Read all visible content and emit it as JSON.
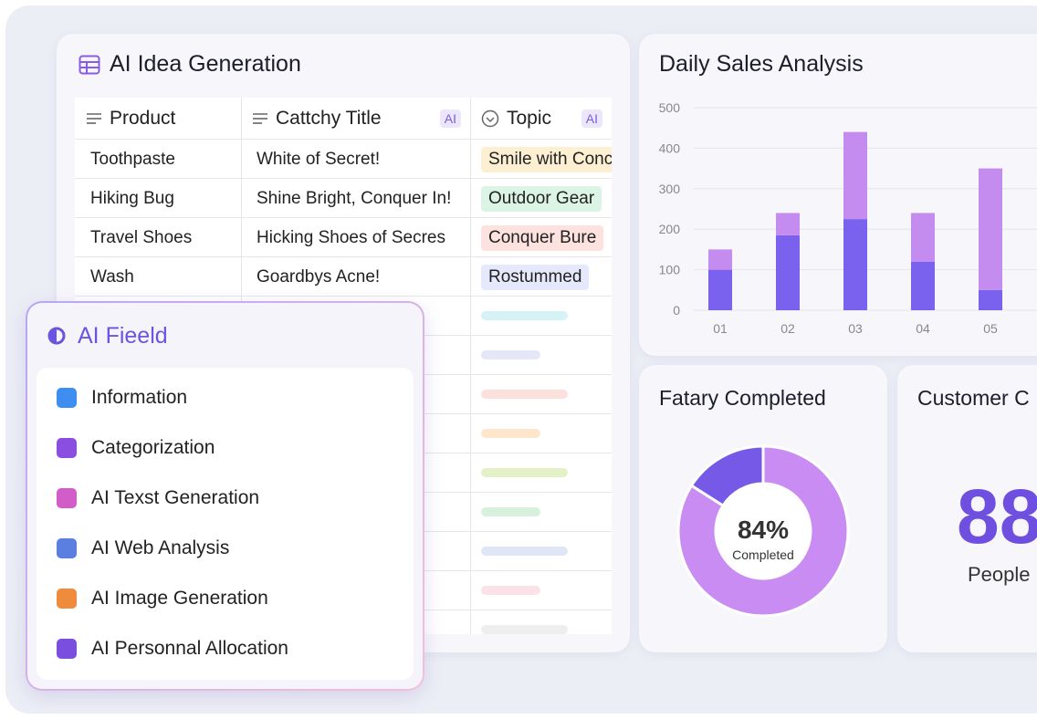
{
  "idea_table": {
    "title": "AI Idea Generation",
    "columns": [
      {
        "label": "Product"
      },
      {
        "label": "Cattchy Title",
        "badge": "AI"
      },
      {
        "label": "Topic",
        "badge": "AI"
      }
    ],
    "rows": [
      [
        "Toothpaste",
        "White of Secret!",
        "Smile with Conc"
      ],
      [
        "Hiking Bug",
        "Shine Bright, Conquer In!",
        "Outdoor Gear"
      ],
      [
        "Travel Shoes",
        "Hicking Shoes of Secres",
        "Conquer Bure"
      ],
      [
        "Wash",
        "Goardbys Acne!",
        "Rostummed"
      ]
    ]
  },
  "ai_field": {
    "title": "AI Fieeld",
    "items": [
      "Information",
      "Categorization",
      "AI Texst Generation",
      "AI Web Analysis",
      "AI Image Generation",
      "AI Personnal Allocation"
    ]
  },
  "chart_data": [
    {
      "type": "bar",
      "title": "Daily Sales Analysis",
      "stacked": true,
      "categories": [
        "01",
        "02",
        "03",
        "04",
        "05"
      ],
      "series": [
        {
          "color": "#7b62ee",
          "values": [
            100,
            185,
            225,
            120,
            50
          ]
        },
        {
          "color": "#c58cf0",
          "values": [
            50,
            55,
            215,
            120,
            300
          ]
        }
      ],
      "ylim": [
        0,
        500
      ],
      "yticks": [
        0,
        100,
        200,
        300,
        400,
        500
      ],
      "grid": true
    },
    {
      "type": "pie",
      "title": "Fatary Completed",
      "donut": true,
      "values": [
        84,
        16
      ],
      "value_labels": [
        "84%",
        null
      ],
      "colors": [
        "#c98cf2",
        "#7659e6"
      ],
      "center_text": "Completed"
    }
  ],
  "customer_card": {
    "title": "Customer C",
    "value": "88",
    "unit": "People"
  }
}
